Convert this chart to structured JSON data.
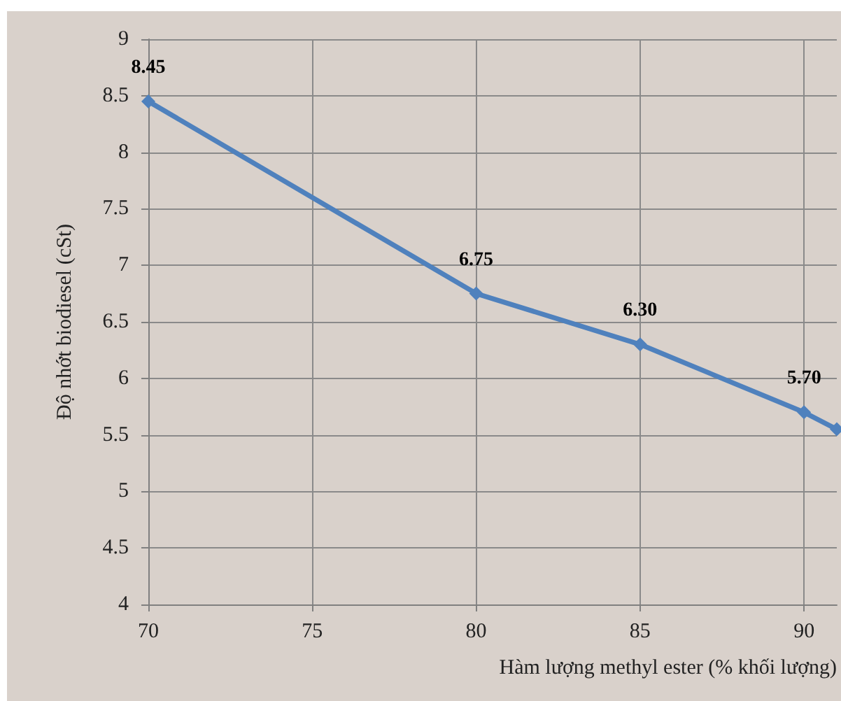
{
  "chart_data": {
    "type": "line",
    "xlabel": "Hàm lượng methyl ester (% khối lượng)",
    "ylabel": "Độ nhớt biodiesel (cSt)",
    "x": [
      70,
      80,
      85,
      90,
      91
    ],
    "series": [
      {
        "color": "#4f81bd",
        "values": [
          8.45,
          6.75,
          6.3,
          5.7,
          5.55
        ],
        "value_labels": [
          "8.45",
          "6.75",
          "6.30",
          "5.70",
          null
        ]
      }
    ],
    "xlim": [
      70,
      91
    ],
    "xticks": [
      70,
      75,
      80,
      85,
      90
    ],
    "ylim": [
      4,
      9
    ],
    "yticks": [
      4,
      4.5,
      5,
      5.5,
      6,
      6.5,
      7,
      7.5,
      8,
      8.5,
      9
    ],
    "grid": true,
    "marker": "diamond",
    "line_style": "solid"
  }
}
